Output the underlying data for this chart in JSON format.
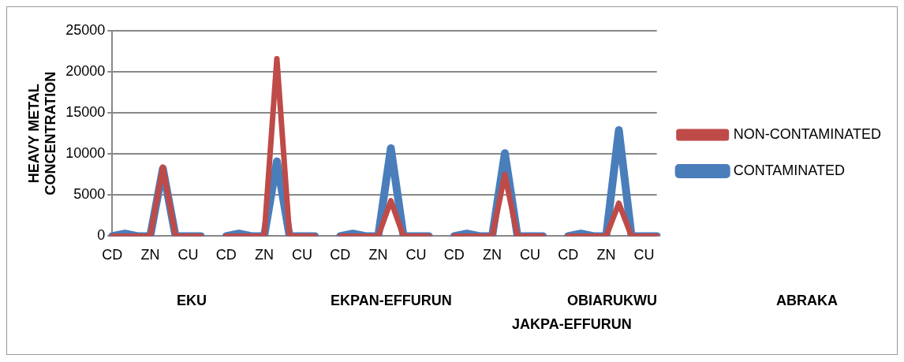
{
  "chart_data": {
    "type": "line",
    "ylabel": "HEAVY METAL CONCENTRATION",
    "categories": [
      "CD",
      null,
      null,
      "ZN",
      null,
      null,
      "CU",
      null,
      null,
      "CD",
      null,
      null,
      "ZN",
      null,
      null,
      "CU",
      null,
      null,
      "CD",
      null,
      null,
      "ZN",
      null,
      null,
      "CU",
      null,
      null,
      "CD",
      null,
      null,
      "ZN",
      null,
      null,
      "CU",
      null,
      null,
      "CD",
      null,
      null,
      "ZN",
      null,
      null,
      "CU",
      null
    ],
    "series": [
      {
        "name": "CONTAMINATED",
        "color": "#4a7ebb",
        "values": [
          0,
          300,
          0,
          0,
          8200,
          0,
          0,
          0,
          null,
          0,
          300,
          0,
          0,
          9100,
          0,
          0,
          0,
          null,
          0,
          300,
          0,
          0,
          10700,
          0,
          0,
          0,
          null,
          0,
          300,
          0,
          0,
          10100,
          0,
          0,
          0,
          null,
          0,
          300,
          0,
          0,
          12900,
          0,
          0,
          0
        ]
      },
      {
        "name": "NON-CONTAMINATED",
        "color": "#be4b48",
        "values": [
          0,
          0,
          0,
          0,
          8400,
          0,
          0,
          0,
          null,
          0,
          0,
          0,
          0,
          21600,
          0,
          0,
          0,
          null,
          0,
          0,
          0,
          0,
          4300,
          0,
          0,
          0,
          null,
          0,
          0,
          0,
          0,
          7500,
          0,
          0,
          0,
          null,
          0,
          0,
          0,
          0,
          4000,
          0,
          0,
          0
        ]
      }
    ],
    "ylim": [
      0,
      25000
    ],
    "yticks": [
      0,
      5000,
      10000,
      15000,
      20000,
      25000
    ],
    "grid": "y",
    "legend": "right",
    "marker": "none",
    "line_style": "solid",
    "annotations": [
      "EKU",
      "EKPAN-EFFURUN",
      "OBIARUKWU",
      "ABRAKA",
      "JAKPA-EFFURUN"
    ]
  }
}
